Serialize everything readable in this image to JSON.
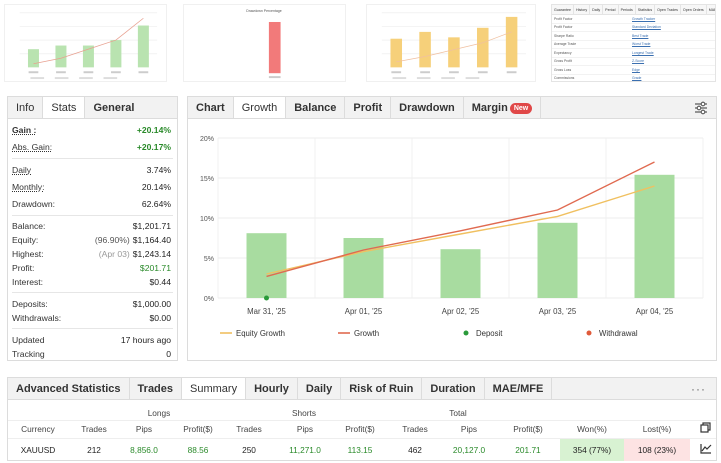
{
  "thumbnails": {
    "gain": {
      "values": [
        20,
        24,
        24,
        30,
        46
      ],
      "line": [
        4,
        10,
        20,
        30,
        54
      ]
    },
    "drawdown": {
      "title": "Drawdown Percentage",
      "values": [
        58
      ]
    },
    "growth": {
      "values": [
        42,
        52,
        44,
        58,
        74
      ],
      "line": [
        8,
        16,
        26,
        36,
        52
      ]
    }
  },
  "mini_table": {
    "tabs": [
      "Guarantee",
      "History",
      "Daily",
      "Period",
      "Periods",
      "Statistics",
      "Open Trades",
      "Open Orders",
      "MAE/MFE"
    ],
    "rows": [
      {
        "left": "Profit Factor",
        "right": "Growth Tracker"
      },
      {
        "left": "Profit Factor",
        "right": "Standard Deviation"
      },
      {
        "left": "Sharpe Ratio",
        "right": "Best Trade"
      },
      {
        "left": "Average Trade",
        "right": "Worst Trade"
      },
      {
        "left": "Expectancy",
        "right": "Longest Trade"
      },
      {
        "left": "Gross Profit",
        "right": "Z-Score"
      },
      {
        "left": "Gross Loss",
        "right": "Edge"
      },
      {
        "left": "Commissions",
        "right": "Grade"
      }
    ]
  },
  "stats": {
    "tabs": [
      "Info",
      "Stats",
      "General"
    ],
    "rows": [
      {
        "label": "Gain :",
        "value": "+20.14%"
      },
      {
        "label": "Abs. Gain:",
        "value": "+20.17%"
      },
      {
        "label": "Daily",
        "value": "3.74%"
      },
      {
        "label": "Monthly:",
        "value": "20.14%"
      },
      {
        "label": "Drawdown:",
        "value": "62.64%"
      },
      {
        "label": "Balance:",
        "value": "$1,201.71"
      },
      {
        "label": "Equity:",
        "note": "(96.90%)",
        "value": "$1,164.40"
      },
      {
        "label": "Highest:",
        "note": "(Apr 03)",
        "value": "$1,243.14"
      },
      {
        "label": "Profit:",
        "value": "$201.71"
      },
      {
        "label": "Interest:",
        "value": "$0.44"
      },
      {
        "label": "Deposits:",
        "value": "$1,000.00"
      },
      {
        "label": "Withdrawals:",
        "value": "$0.00"
      },
      {
        "label": "Updated",
        "value": "17 hours ago"
      },
      {
        "label": "Tracking",
        "value": "0"
      }
    ]
  },
  "chart_panel": {
    "tabs": [
      "Chart",
      "Growth",
      "Balance",
      "Profit",
      "Drawdown",
      "Margin"
    ],
    "badge": "New",
    "icon": "settings-sliders-icon"
  },
  "chart_data": {
    "type": "bar",
    "categories": [
      "Mar 31, '25",
      "Apr 01, '25",
      "Apr 02, '25",
      "Apr 03, '25",
      "Apr 04, '25"
    ],
    "ytick_labels": [
      "0%",
      "5%",
      "10%",
      "15%",
      "20%"
    ],
    "ylim": [
      0,
      20
    ],
    "series": [
      {
        "name": "",
        "type": "bar",
        "values": [
          8.1,
          7.5,
          6.1,
          9.4,
          15.4
        ],
        "color": "#a8dca0"
      },
      {
        "name": "Equity Growth",
        "type": "line",
        "values": [
          3.0,
          5.8,
          8.0,
          10.2,
          14.0
        ],
        "color": "#f0c060"
      },
      {
        "name": "Growth",
        "type": "line",
        "values": [
          2.7,
          6.0,
          8.4,
          11.0,
          17.0
        ],
        "color": "#e06a50"
      }
    ],
    "deposit_marker": {
      "category": "Mar 31, '25",
      "value": 0,
      "color": "#2a9a3a"
    },
    "legend": [
      {
        "name": "Equity Growth",
        "marker": "line",
        "color": "#f0c060"
      },
      {
        "name": "Growth",
        "marker": "line",
        "color": "#e06a50"
      },
      {
        "name": "Deposit",
        "marker": "dot",
        "color": "#2a9a3a"
      },
      {
        "name": "Withdrawal",
        "marker": "dot",
        "color": "#e05a3a"
      }
    ],
    "legend_position": "bottom",
    "grid": true
  },
  "advanced": {
    "tabs": [
      "Advanced Statistics",
      "Trades",
      "Summary",
      "Hourly",
      "Daily",
      "Risk of Ruin",
      "Duration",
      "MAE/MFE"
    ],
    "more": "···",
    "groups": [
      "Longs",
      "Shorts",
      "Total"
    ],
    "headers": [
      "Currency",
      "Trades",
      "Pips",
      "Profit($)",
      "Trades",
      "Pips",
      "Profit($)",
      "Trades",
      "Pips",
      "Profit($)",
      "Won(%)",
      "Lost(%)"
    ],
    "row": [
      "XAUUSD",
      "212",
      "8,856.0",
      "88.56",
      "250",
      "11,271.0",
      "113.15",
      "462",
      "20,127.0",
      "201.71",
      "354 (77%)",
      "108 (23%)"
    ]
  }
}
